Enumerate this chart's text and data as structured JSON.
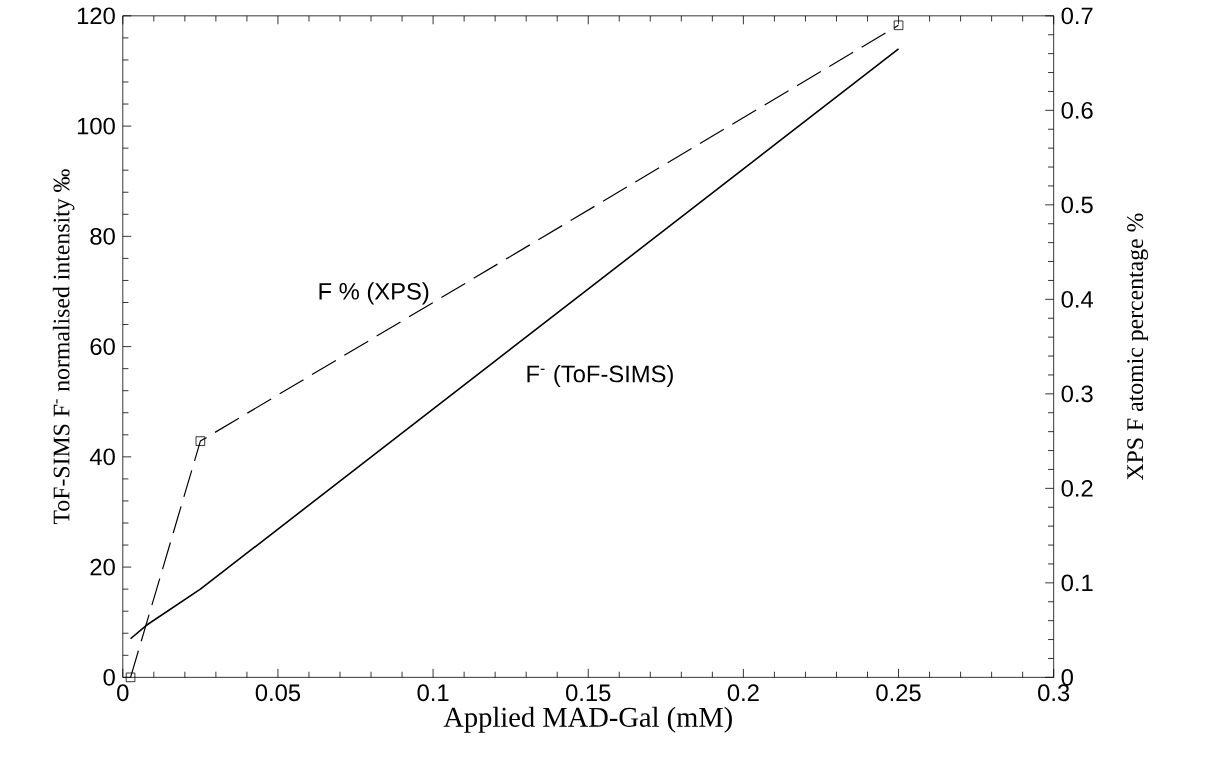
{
  "chart_data": {
    "type": "line",
    "xlabel": "Applied MAD-Gal (mM)",
    "ylabel": "ToF-SIMS F$^{-}$ normalised intensity ‰",
    "y2label": "XPS F atomic percentage %",
    "xlim": [
      0,
      0.3
    ],
    "xticks": [
      0,
      0.05,
      0.1,
      0.15,
      0.2,
      0.25,
      0.3
    ],
    "ylim": [
      0,
      120
    ],
    "yticks": [
      0,
      20,
      40,
      60,
      80,
      100,
      120
    ],
    "y2lim": [
      0,
      0.7
    ],
    "y2ticks": [
      0,
      0.1,
      0.2,
      0.3,
      0.4,
      0.5,
      0.6,
      0.7
    ],
    "series": [
      {
        "name": "F$^{-}$ (ToF-SIMS)",
        "color": "#000000",
        "x": [
          0.0025,
          0.0075,
          0.025,
          0.25
        ],
        "values": [
          7,
          9.4,
          16,
          114
        ],
        "marker": "none",
        "line_style": "solid"
      },
      {
        "name": "F % (XPS)",
        "color": "#000000",
        "axis": "y2",
        "x": [
          0.0025,
          0.025,
          0.25
        ],
        "values": [
          0,
          0.25,
          0.69
        ],
        "marker": "square",
        "line_style": "dashed"
      }
    ]
  }
}
